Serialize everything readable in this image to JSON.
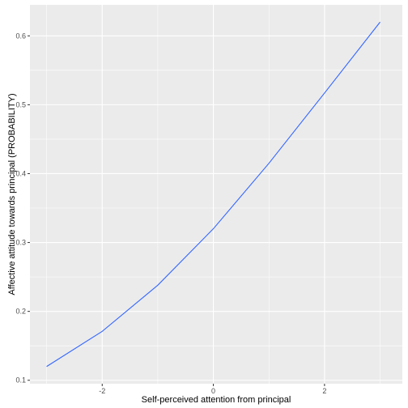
{
  "chart_data": {
    "type": "line",
    "title": "",
    "xlabel": "Self-perceived attention from principal",
    "ylabel": "Affective attitude towards principal (PROBABILITY)",
    "xlim": [
      -3.3,
      3.4
    ],
    "ylim": [
      0.095,
      0.645
    ],
    "x_ticks": [
      -2,
      0,
      2
    ],
    "x_tick_labels": [
      "-2",
      "0",
      "2"
    ],
    "y_ticks": [
      0.1,
      0.2,
      0.3,
      0.4,
      0.5,
      0.6
    ],
    "y_tick_labels": [
      "0.1",
      "0.2",
      "0.3",
      "0.4",
      "0.5",
      "0.6"
    ],
    "grid": true,
    "legend": "none",
    "series": [
      {
        "x": [
          -3,
          -2,
          -1,
          0,
          1,
          2,
          3
        ],
        "y": [
          0.12,
          0.171,
          0.238,
          0.32,
          0.415,
          0.517,
          0.62
        ],
        "color": "#3366FF"
      }
    ],
    "colors": {
      "panel_background": "#EBEBEB",
      "grid_major": "#FFFFFF",
      "line": "#3366FF",
      "tick_label": "#4D4D4D"
    }
  }
}
